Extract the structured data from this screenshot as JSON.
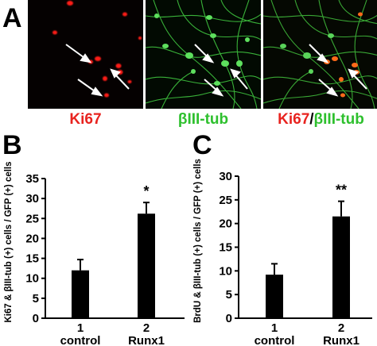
{
  "figure": {
    "panel_a_letter": "A",
    "panel_b_letter": "B",
    "panel_c_letter": "C",
    "micrograph_labels": {
      "ki67": "Ki67",
      "tub": "βIII-tub",
      "merge_red": "Ki67",
      "merge_slash": "/",
      "merge_green": "βIII-tub"
    },
    "colors": {
      "red": "#e8231f",
      "green": "#2ec02e",
      "bar": "#000000"
    }
  },
  "chart_data": [
    {
      "type": "bar",
      "panel": "B",
      "categories": [
        "1\ncontrol",
        "2\nRunx1"
      ],
      "category_numbers": [
        "1",
        "2"
      ],
      "category_names": [
        "control",
        "Runx1"
      ],
      "values": [
        12,
        26.2
      ],
      "errors": [
        2.7,
        2.8
      ],
      "significance": [
        "",
        "*"
      ],
      "ylabel": "Ki67 & βIII-tub (+) cells / GFP (+) cells",
      "ylim": [
        0,
        35
      ],
      "yticks": [
        0,
        5,
        10,
        15,
        20,
        25,
        30,
        35
      ],
      "grid": false,
      "legend": "none"
    },
    {
      "type": "bar",
      "panel": "C",
      "categories": [
        "1\ncontrol",
        "2\nRunx1"
      ],
      "category_numbers": [
        "1",
        "2"
      ],
      "category_names": [
        "control",
        "Runx1"
      ],
      "values": [
        9.2,
        21.5
      ],
      "errors": [
        2.3,
        3.2
      ],
      "significance": [
        "",
        "**"
      ],
      "ylabel": "BrdU & βIII-tub (+) cells / GFP (+) cells",
      "ylim": [
        0,
        30
      ],
      "yticks": [
        0,
        5,
        10,
        15,
        20,
        25,
        30
      ],
      "grid": false,
      "legend": "none"
    }
  ]
}
